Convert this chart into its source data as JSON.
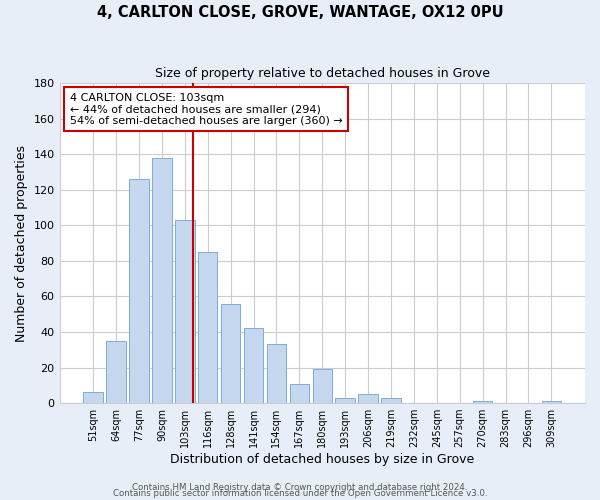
{
  "title": "4, CARLTON CLOSE, GROVE, WANTAGE, OX12 0PU",
  "subtitle": "Size of property relative to detached houses in Grove",
  "xlabel": "Distribution of detached houses by size in Grove",
  "ylabel": "Number of detached properties",
  "bar_color": "#c5d8f0",
  "bar_edge_color": "#7bafd4",
  "categories": [
    "51sqm",
    "64sqm",
    "77sqm",
    "90sqm",
    "103sqm",
    "116sqm",
    "128sqm",
    "141sqm",
    "154sqm",
    "167sqm",
    "180sqm",
    "193sqm",
    "206sqm",
    "219sqm",
    "232sqm",
    "245sqm",
    "257sqm",
    "270sqm",
    "283sqm",
    "296sqm",
    "309sqm"
  ],
  "values": [
    6,
    35,
    126,
    138,
    103,
    85,
    56,
    42,
    33,
    11,
    19,
    3,
    5,
    3,
    0,
    0,
    0,
    1,
    0,
    0,
    1
  ],
  "annotation_line1": "4 CARLTON CLOSE: 103sqm",
  "annotation_line2": "← 44% of detached houses are smaller (294)",
  "annotation_line3": "54% of semi-detached houses are larger (360) →",
  "property_bar_index": 4,
  "red_line_color": "#cc0000",
  "ylim": [
    0,
    180
  ],
  "yticks": [
    0,
    20,
    40,
    60,
    80,
    100,
    120,
    140,
    160,
    180
  ],
  "footer1": "Contains HM Land Registry data © Crown copyright and database right 2024.",
  "footer2": "Contains public sector information licensed under the Open Government Licence v3.0.",
  "fig_bg_color": "#e8eef8",
  "plot_bg_color": "#ffffff",
  "grid_color": "#cccccc",
  "annotation_bg": "#ffffff",
  "annotation_edge": "#cc0000"
}
